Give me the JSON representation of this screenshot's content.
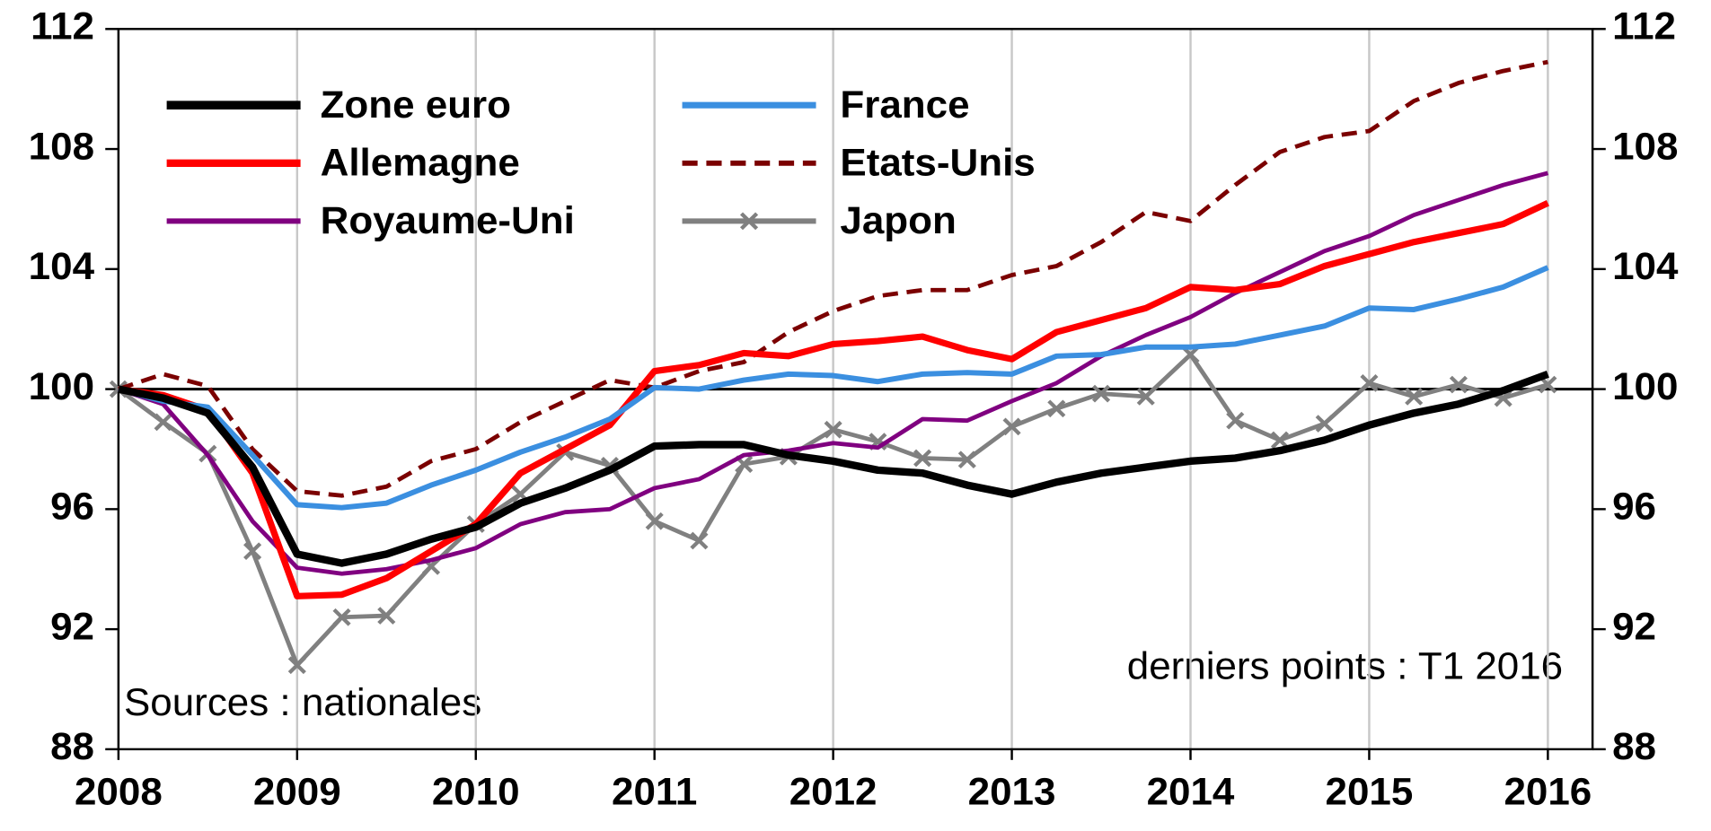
{
  "chart_data": {
    "type": "line",
    "annotations": [
      "derniers points : T1 2016",
      "Sources : nationales"
    ],
    "x": [
      2008,
      2008.25,
      2008.5,
      2008.75,
      2009,
      2009.25,
      2009.5,
      2009.75,
      2010,
      2010.25,
      2010.5,
      2010.75,
      2011,
      2011.25,
      2011.5,
      2011.75,
      2012,
      2012.25,
      2012.5,
      2012.75,
      2013,
      2013.25,
      2013.5,
      2013.75,
      2014,
      2014.25,
      2014.5,
      2014.75,
      2015,
      2015.25,
      2015.5,
      2015.75,
      2016
    ],
    "series": [
      {
        "name": "Zone euro",
        "color": "#000000",
        "width": 7,
        "values": [
          100,
          99.7,
          99.2,
          97.4,
          94.5,
          94.2,
          94.5,
          95.0,
          95.4,
          96.2,
          96.7,
          97.3,
          98.1,
          98.15,
          98.15,
          97.8,
          97.6,
          97.3,
          97.2,
          96.8,
          96.5,
          96.9,
          97.2,
          97.4,
          97.6,
          97.7,
          97.95,
          98.3,
          98.8,
          99.2,
          99.5,
          99.95,
          100.5
        ]
      },
      {
        "name": "France",
        "color": "#3b8fe0",
        "width": 5,
        "values": [
          100,
          99.6,
          99.4,
          97.8,
          96.15,
          96.05,
          96.2,
          96.8,
          97.3,
          97.9,
          98.4,
          99.0,
          100.05,
          100.0,
          100.3,
          100.5,
          100.45,
          100.25,
          100.5,
          100.55,
          100.5,
          101.1,
          101.15,
          101.4,
          101.4,
          101.5,
          101.8,
          102.1,
          102.7,
          102.65,
          103.0,
          103.4,
          104.05
        ]
      },
      {
        "name": "Allemagne",
        "color": "#ff0000",
        "width": 6,
        "values": [
          100,
          99.8,
          99.3,
          97.2,
          93.1,
          93.15,
          93.7,
          94.6,
          95.5,
          97.2,
          98.0,
          98.8,
          100.6,
          100.8,
          101.2,
          101.1,
          101.5,
          101.6,
          101.75,
          101.3,
          101.0,
          101.9,
          102.3,
          102.7,
          103.4,
          103.3,
          103.5,
          104.1,
          104.5,
          104.9,
          105.2,
          105.5,
          106.2
        ]
      },
      {
        "name": "Etats-Unis",
        "color": "#7b0000",
        "width": 4,
        "dash": true,
        "values": [
          100,
          100.5,
          100.1,
          98.0,
          96.6,
          96.45,
          96.75,
          97.6,
          98.0,
          98.9,
          99.6,
          100.3,
          100.05,
          100.6,
          100.9,
          101.9,
          102.6,
          103.1,
          103.3,
          103.3,
          103.8,
          104.1,
          104.9,
          105.9,
          105.6,
          106.8,
          107.9,
          108.4,
          108.6,
          109.6,
          110.2,
          110.6,
          110.9
        ]
      },
      {
        "name": "Royaume-Uni",
        "color": "#800080",
        "width": 4,
        "values": [
          100,
          99.5,
          97.8,
          95.6,
          94.05,
          93.85,
          94.0,
          94.3,
          94.7,
          95.5,
          95.9,
          96.0,
          96.7,
          97.0,
          97.8,
          97.95,
          98.2,
          98.05,
          99.0,
          98.95,
          99.6,
          100.2,
          101.1,
          101.8,
          102.4,
          103.2,
          103.9,
          104.6,
          105.1,
          105.8,
          106.3,
          106.8,
          107.2
        ]
      },
      {
        "name": "Japon",
        "color": "#808080",
        "width": 4,
        "marker": "x",
        "values": [
          100,
          98.9,
          97.85,
          94.6,
          90.8,
          92.4,
          92.45,
          94.1,
          95.5,
          96.5,
          97.9,
          97.45,
          95.6,
          94.95,
          97.5,
          97.75,
          98.65,
          98.25,
          97.7,
          97.65,
          98.75,
          99.35,
          99.85,
          99.75,
          101.15,
          98.95,
          98.3,
          98.85,
          100.2,
          99.75,
          100.15,
          99.7,
          100.15
        ]
      }
    ],
    "baseline": 100,
    "xlim": [
      2008,
      2016.25
    ],
    "xticks": [
      2008,
      2009,
      2010,
      2011,
      2012,
      2013,
      2014,
      2015,
      2016
    ],
    "ylim": [
      88,
      112
    ],
    "yticks": [
      88,
      92,
      96,
      100,
      104,
      108,
      112
    ],
    "y2lim": [
      88,
      112
    ],
    "y2ticks": [
      88,
      92,
      96,
      100,
      104,
      108,
      112
    ],
    "grid": true
  }
}
